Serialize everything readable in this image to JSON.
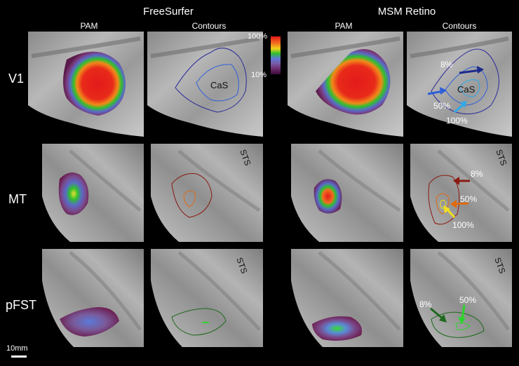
{
  "groups": [
    {
      "title": "FreeSurfer"
    },
    {
      "title": "MSM Retino"
    }
  ],
  "columns": [
    "PAM",
    "Contours",
    "PAM",
    "Contours"
  ],
  "rows": [
    "V1",
    "MT",
    "pFST"
  ],
  "legend": {
    "max_label": "100%",
    "min_label": "10%"
  },
  "v1": {
    "cas_label": "CaS",
    "p8": "8%",
    "p50": "50%",
    "p100": "100%"
  },
  "mt": {
    "sts": "STS",
    "p8": "8%",
    "p50": "50%",
    "p100": "100%"
  },
  "pfst": {
    "sts": "STS",
    "p8": "8%",
    "p50": "50%"
  },
  "scale_bar": {
    "label": "10mm"
  },
  "colors": {
    "contour_v1_8": "#2a2a9a",
    "contour_v1_50": "#2e5fd8",
    "contour_v1_100": "#2fa9e8",
    "contour_mt_8": "#8a1a10",
    "contour_mt_50": "#e06a10",
    "contour_mt_100": "#f2e020",
    "contour_pfst_8": "#1e6a1e",
    "contour_pfst_50": "#2bd42b"
  }
}
